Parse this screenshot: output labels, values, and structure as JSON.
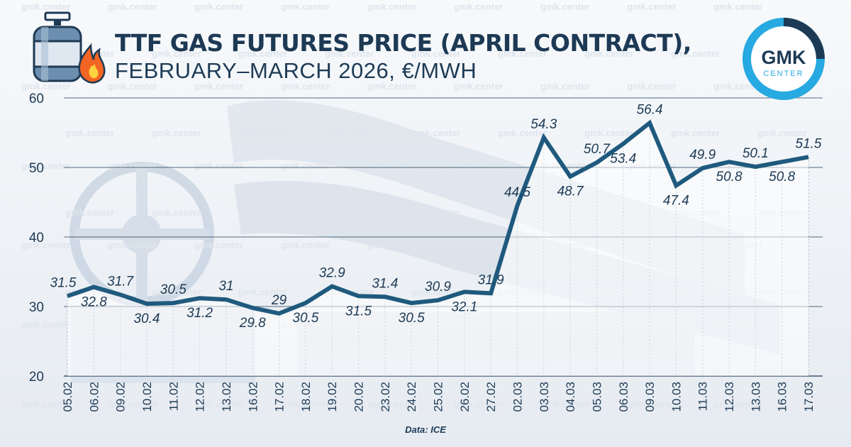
{
  "title_line1": "TTF GAS FUTURES PRICE (APRIL CONTRACT),",
  "title_line2": "FEBRUARY–MARCH 2026, €/MWH",
  "logo": {
    "line1": "GMK",
    "line2": "CENTER"
  },
  "watermark_text": "gmk.center",
  "source": "Data: ICE",
  "colors": {
    "line": "#1f5a7e",
    "text": "#1d3a55",
    "logo_dark": "#1d3a55",
    "logo_accent": "#27a9e1",
    "flame": "#f26522"
  },
  "icons": [
    "gas-cylinder-icon",
    "flame-icon"
  ],
  "chart_data": {
    "type": "line",
    "unit": "€/MWh",
    "categories": [
      "05.02",
      "06.02",
      "09.02",
      "10.02",
      "11.02",
      "12.02",
      "13.02",
      "16.02",
      "17.02",
      "18.02",
      "19.02",
      "20.02",
      "23.02",
      "24.02",
      "25.02",
      "26.02",
      "27.02",
      "02.03",
      "03.03",
      "04.03",
      "05.03",
      "06.03",
      "09.03",
      "10.03",
      "11.03",
      "12.03",
      "13.03",
      "16.03",
      "17.03"
    ],
    "values": [
      31.5,
      32.8,
      31.7,
      30.4,
      30.5,
      31.2,
      31,
      29.8,
      29,
      30.5,
      32.9,
      31.5,
      31.4,
      30.5,
      30.9,
      32.1,
      31.9,
      44.5,
      54.3,
      48.7,
      50.7,
      53.4,
      56.4,
      47.4,
      49.9,
      50.8,
      50.1,
      50.8,
      51.5
    ],
    "label_positions": [
      "above",
      "below",
      "above",
      "below",
      "above",
      "below",
      "above",
      "below",
      "above",
      "below",
      "above",
      "below",
      "above",
      "below",
      "above",
      "below",
      "above",
      "above",
      "above",
      "below",
      "above",
      "below",
      "above",
      "below",
      "above",
      "below",
      "above",
      "below",
      "above"
    ],
    "ylim": [
      20,
      60
    ],
    "yticks": [
      20,
      30,
      40,
      50,
      60
    ],
    "grid": "horizontal",
    "legend": "none"
  }
}
